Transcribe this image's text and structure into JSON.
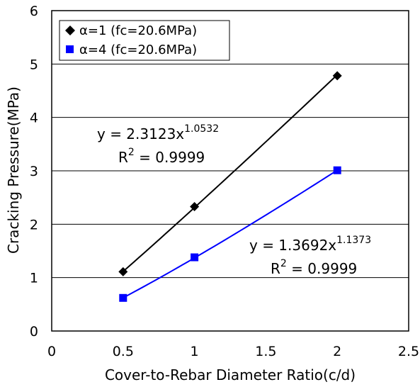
{
  "chart_data": {
    "type": "scatter",
    "title": "",
    "xlabel": "Cover-to-Rebar Diameter Ratio(c/d)",
    "ylabel": "Cracking Pressure(MPa)",
    "xlim": [
      0,
      2.5
    ],
    "ylim": [
      0,
      6
    ],
    "x_ticks": [
      "0",
      "0.5",
      "1",
      "1.5",
      "2",
      "2.5"
    ],
    "y_ticks": [
      "0",
      "1",
      "2",
      "3",
      "4",
      "5",
      "6"
    ],
    "grid": "horizontal",
    "legend_position": "top-left",
    "series": [
      {
        "name": "α=1 (fc=20.6MPa)",
        "marker": "diamond",
        "color": "#000000",
        "x": [
          0.5,
          1.0,
          2.0
        ],
        "y": [
          1.11,
          2.33,
          4.78
        ],
        "trendline": {
          "type": "power",
          "a": 2.3123,
          "b": 1.0532,
          "equation_prefix": "y = 2.3123x",
          "equation_exp": "1.0532",
          "r2_prefix": "R",
          "r2_sup": "2",
          "r2_suffix": " = 0.9999"
        }
      },
      {
        "name": "α=4 (fc=20.6MPa)",
        "marker": "square",
        "color": "#0000FF",
        "x": [
          0.5,
          1.0,
          2.0
        ],
        "y": [
          0.62,
          1.38,
          3.01
        ],
        "trendline": {
          "type": "power",
          "a": 1.3692,
          "b": 1.1373,
          "equation_prefix": "y = 1.3692x",
          "equation_exp": "1.1373",
          "r2_prefix": "R",
          "r2_sup": "2",
          "r2_suffix": " = 0.9999"
        }
      }
    ]
  }
}
